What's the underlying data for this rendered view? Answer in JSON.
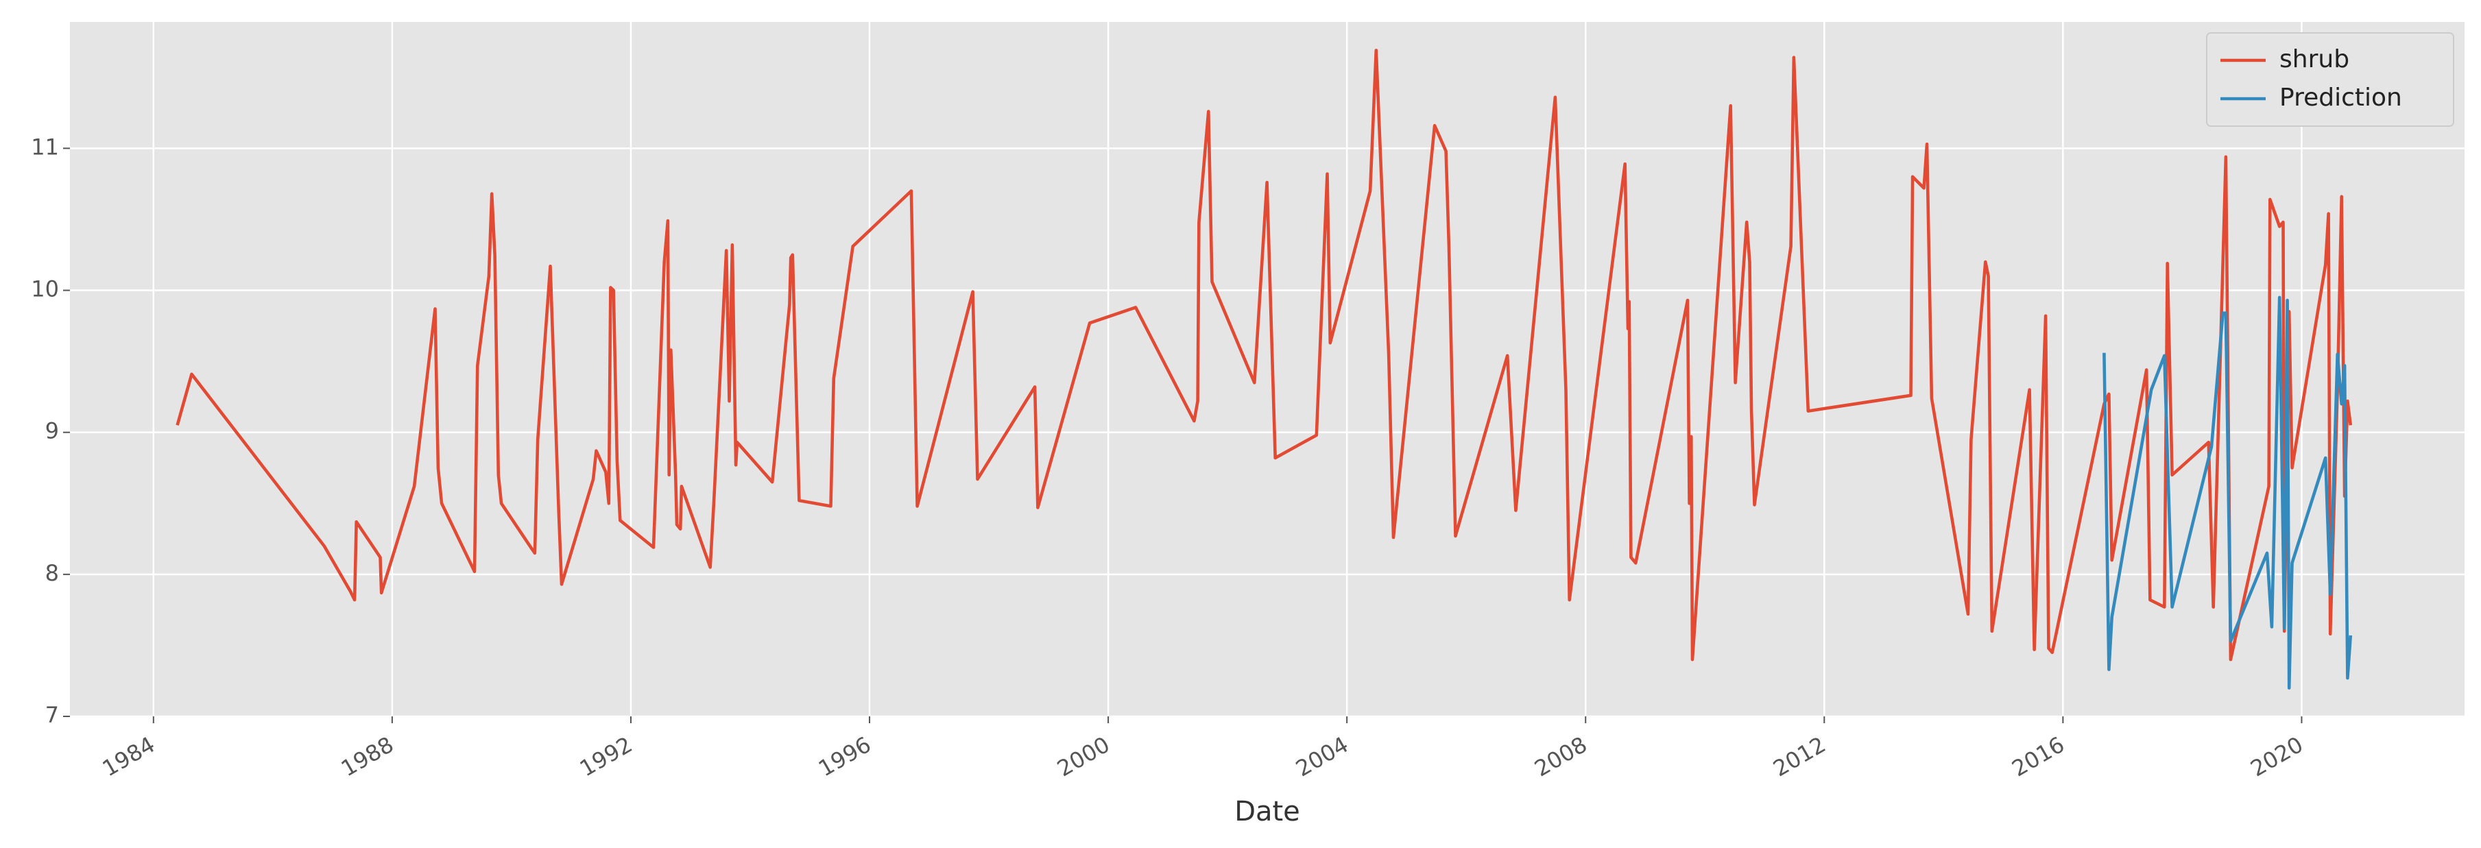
{
  "chart_data": {
    "type": "line",
    "x_label": "Date",
    "xlim": [
      1982.6,
      2022.73
    ],
    "xticks": [
      1984,
      1988,
      1992,
      1996,
      2000,
      2004,
      2008,
      2012,
      2016,
      2020
    ],
    "ylim": [
      7,
      11.89
    ],
    "yticks": [
      7,
      8,
      9,
      10,
      11
    ],
    "grid": true,
    "legend": "upper right",
    "series": [
      {
        "name": "shrub",
        "color": "#E24A33",
        "x": [
          1984.4,
          1984.64,
          1986.86,
          1987.3,
          1987.37,
          1987.4,
          1987.8,
          1987.82,
          1988.37,
          1988.72,
          1988.77,
          1988.83,
          1989.38,
          1989.43,
          1989.62,
          1989.67,
          1989.72,
          1989.78,
          1989.83,
          1990.34,
          1990.39,
          1990.44,
          1990.65,
          1990.79,
          1990.84,
          1991.37,
          1991.42,
          1991.58,
          1991.63,
          1991.66,
          1991.71,
          1991.77,
          1991.82,
          1992.38,
          1992.56,
          1992.62,
          1992.64,
          1992.67,
          1992.75,
          1992.77,
          1992.83,
          1992.85,
          1993.33,
          1993.39,
          1993.6,
          1993.65,
          1993.7,
          1993.76,
          1993.78,
          1994.37,
          1994.66,
          1994.68,
          1994.71,
          1994.82,
          1995.35,
          1995.4,
          1995.72,
          1996.7,
          1996.8,
          1997.73,
          1997.81,
          1998.77,
          1998.82,
          1999.69,
          2000.46,
          2001.44,
          2001.5,
          2001.52,
          2001.68,
          2001.74,
          2002.45,
          2002.66,
          2002.8,
          2003.49,
          2003.67,
          2003.72,
          2004.39,
          2004.49,
          2004.7,
          2004.78,
          2005.47,
          2005.66,
          2005.71,
          2005.82,
          2006.69,
          2006.83,
          2007.49,
          2007.67,
          2007.73,
          2008.66,
          2008.71,
          2008.73,
          2008.76,
          2008.84,
          2009.71,
          2009.74,
          2009.77,
          2009.79,
          2010.43,
          2010.51,
          2010.7,
          2010.75,
          2010.78,
          2010.83,
          2011.44,
          2011.49,
          2011.73,
          2013.45,
          2013.48,
          2013.67,
          2013.72,
          2013.8,
          2014.41,
          2014.46,
          2014.7,
          2014.75,
          2014.81,
          2015.44,
          2015.52,
          2015.71,
          2015.76,
          2015.82,
          2016.69,
          2016.77,
          2016.82,
          2017.4,
          2017.46,
          2017.7,
          2017.75,
          2017.83,
          2018.44,
          2018.52,
          2018.73,
          2018.81,
          2019.45,
          2019.47,
          2019.63,
          2019.69,
          2019.71,
          2019.79,
          2019.84,
          2020.4,
          2020.45,
          2020.48,
          2020.6,
          2020.67,
          2020.72,
          2020.77,
          2020.82
        ],
        "values": [
          9.05,
          9.41,
          8.2,
          7.88,
          7.82,
          8.37,
          8.12,
          7.87,
          8.62,
          9.87,
          8.75,
          8.5,
          8.02,
          9.47,
          10.1,
          10.68,
          10.25,
          8.7,
          8.5,
          8.18,
          8.15,
          8.95,
          10.17,
          8.45,
          7.93,
          8.67,
          8.87,
          8.72,
          8.5,
          10.02,
          10.0,
          8.8,
          8.38,
          8.19,
          10.2,
          10.49,
          8.7,
          9.58,
          8.7,
          8.35,
          8.32,
          8.62,
          8.05,
          8.5,
          10.28,
          9.22,
          10.32,
          8.77,
          8.93,
          8.65,
          9.9,
          10.23,
          10.25,
          8.52,
          8.48,
          9.38,
          10.31,
          10.7,
          8.48,
          9.99,
          8.67,
          9.32,
          8.47,
          9.77,
          9.88,
          9.08,
          9.22,
          10.48,
          11.26,
          10.06,
          9.35,
          10.76,
          8.82,
          8.98,
          10.82,
          9.63,
          10.7,
          11.69,
          9.55,
          8.26,
          11.16,
          10.98,
          10.3,
          8.27,
          9.54,
          8.45,
          11.36,
          9.3,
          7.82,
          10.89,
          9.73,
          9.92,
          8.12,
          8.08,
          9.93,
          8.5,
          8.97,
          7.4,
          11.3,
          9.35,
          10.48,
          10.2,
          9.15,
          8.49,
          10.31,
          11.64,
          9.15,
          9.26,
          10.8,
          10.72,
          11.03,
          9.24,
          7.72,
          8.95,
          10.2,
          10.1,
          7.6,
          9.3,
          7.47,
          9.82,
          7.48,
          7.45,
          9.2,
          9.27,
          8.1,
          9.44,
          7.82,
          7.77,
          10.19,
          8.7,
          8.93,
          7.77,
          10.94,
          7.4,
          8.62,
          10.64,
          10.45,
          10.48,
          7.6,
          9.85,
          8.75,
          10.18,
          10.54,
          7.58,
          9.3,
          10.66,
          8.55,
          9.22,
          9.05
        ]
      },
      {
        "name": "Prediction",
        "color": "#348ABD",
        "x": [
          2016.69,
          2016.77,
          2016.82,
          2017.48,
          2017.7,
          2017.83,
          2018.49,
          2018.68,
          2018.73,
          2018.81,
          2019.42,
          2019.5,
          2019.63,
          2019.71,
          2019.76,
          2019.79,
          2019.84,
          2020.4,
          2020.48,
          2020.6,
          2020.67,
          2020.72,
          2020.77,
          2020.82
        ],
        "values": [
          9.56,
          7.33,
          7.7,
          9.3,
          9.54,
          7.77,
          8.9,
          9.84,
          9.84,
          7.53,
          8.15,
          7.63,
          9.95,
          7.62,
          9.93,
          7.2,
          8.08,
          8.82,
          7.86,
          9.55,
          9.2,
          9.47,
          7.27,
          7.57
        ]
      }
    ]
  }
}
